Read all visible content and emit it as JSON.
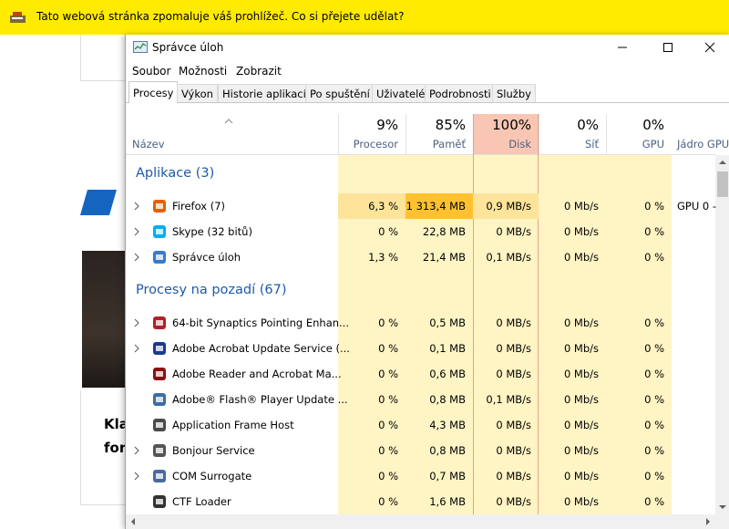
{
  "notification": {
    "text": "Tato webová stránka zpomaluje váš prohlížeč. Co si přejete udělat?"
  },
  "background_page": {
    "headline": [
      "Kla",
      "for"
    ]
  },
  "window": {
    "title": "Správce úloh",
    "menu": [
      "Soubor",
      "Možnosti",
      "Zobrazit"
    ],
    "tabs": [
      "Procesy",
      "Výkon",
      "Historie aplikací",
      "Po spuštění",
      "Uživatelé",
      "Podrobnosti",
      "Služby"
    ],
    "columns": [
      {
        "label": "Název"
      },
      {
        "percent": "9%",
        "label": "Procesor"
      },
      {
        "percent": "85%",
        "label": "Paměť"
      },
      {
        "percent": "100%",
        "label": "Disk"
      },
      {
        "percent": "0%",
        "label": "Síť"
      },
      {
        "percent": "0%",
        "label": "GPU"
      },
      {
        "label": "Jádro GPU"
      }
    ],
    "groups": [
      {
        "title": "Aplikace (3)",
        "rows": [
          {
            "name": "Firefox (7)",
            "expandable": true,
            "cells": [
              "6,3 %",
              "1 313,4 MB",
              "0,9 MB/s",
              "0 Mb/s",
              "0 %",
              "GPU 0 -"
            ]
          },
          {
            "name": "Skype (32 bitů)",
            "expandable": true,
            "cells": [
              "0 %",
              "22,8 MB",
              "0 MB/s",
              "0 Mb/s",
              "0 %"
            ]
          },
          {
            "name": "Správce úloh",
            "expandable": true,
            "cells": [
              "1,3 %",
              "21,4 MB",
              "0,1 MB/s",
              "0 Mb/s",
              "0 %"
            ]
          }
        ]
      },
      {
        "title": "Procesy na pozadí (67)",
        "rows": [
          {
            "name": "64-bit Synaptics Pointing Enhan...",
            "expandable": true,
            "cells": [
              "0 %",
              "0,5 MB",
              "0 MB/s",
              "0 Mb/s",
              "0 %"
            ]
          },
          {
            "name": "Adobe Acrobat Update Service (...",
            "expandable": true,
            "cells": [
              "0 %",
              "0,1 MB",
              "0 MB/s",
              "0 Mb/s",
              "0 %"
            ]
          },
          {
            "name": "Adobe Reader and Acrobat Ma...",
            "expandable": false,
            "cells": [
              "0 %",
              "0,6 MB",
              "0 MB/s",
              "0 Mb/s",
              "0 %"
            ]
          },
          {
            "name": "Adobe® Flash® Player Update ...",
            "expandable": false,
            "cells": [
              "0 %",
              "0,8 MB",
              "0,1 MB/s",
              "0 Mb/s",
              "0 %"
            ]
          },
          {
            "name": "Application Frame Host",
            "expandable": false,
            "cells": [
              "0 %",
              "4,3 MB",
              "0 MB/s",
              "0 Mb/s",
              "0 %"
            ]
          },
          {
            "name": "Bonjour Service",
            "expandable": true,
            "cells": [
              "0 %",
              "0,8 MB",
              "0 MB/s",
              "0 Mb/s",
              "0 %"
            ]
          },
          {
            "name": "COM Surrogate",
            "expandable": true,
            "cells": [
              "0 %",
              "0,7 MB",
              "0 MB/s",
              "0 Mb/s",
              "0 %"
            ]
          },
          {
            "name": "CTF Loader",
            "expandable": false,
            "cells": [
              "0 %",
              "1,6 MB",
              "0 MB/s",
              "0 Mb/s",
              "0 %"
            ]
          }
        ]
      }
    ]
  }
}
